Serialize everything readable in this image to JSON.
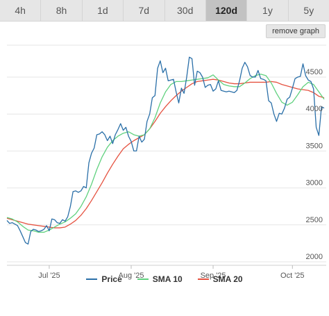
{
  "tabs": [
    {
      "label": "4h"
    },
    {
      "label": "8h"
    },
    {
      "label": "1d"
    },
    {
      "label": "7d"
    },
    {
      "label": "30d"
    },
    {
      "label": "120d",
      "active": true
    },
    {
      "label": "1y"
    },
    {
      "label": "5y"
    }
  ],
  "remove_graph_label": "remove graph",
  "chart_data": {
    "type": "line",
    "x_range": [
      "2025-06-15",
      "2025-10-13"
    ],
    "x_ticks": [
      {
        "date": "2025-07-01",
        "label": "Jul '25"
      },
      {
        "date": "2025-08-01",
        "label": "Aug '25"
      },
      {
        "date": "2025-09-01",
        "label": "Sep '25"
      },
      {
        "date": "2025-10-01",
        "label": "Oct '25"
      }
    ],
    "y_ticks": [
      2000,
      2500,
      3000,
      3500,
      4000,
      4500
    ],
    "ylim": [
      2000,
      4800
    ],
    "grid": true,
    "legend_position": "bottom",
    "series": [
      {
        "name": "Price",
        "color": "#2a6fa8",
        "points": [
          [
            "2025-06-15",
            2560
          ],
          [
            "2025-06-16",
            2520
          ],
          [
            "2025-06-17",
            2530
          ],
          [
            "2025-06-18",
            2510
          ],
          [
            "2025-06-19",
            2490
          ],
          [
            "2025-06-20",
            2420
          ],
          [
            "2025-06-21",
            2340
          ],
          [
            "2025-06-22",
            2260
          ],
          [
            "2025-06-23",
            2240
          ],
          [
            "2025-06-24",
            2410
          ],
          [
            "2025-06-25",
            2440
          ],
          [
            "2025-06-26",
            2430
          ],
          [
            "2025-06-27",
            2410
          ],
          [
            "2025-06-28",
            2420
          ],
          [
            "2025-06-29",
            2440
          ],
          [
            "2025-06-30",
            2490
          ],
          [
            "2025-07-01",
            2420
          ],
          [
            "2025-07-02",
            2580
          ],
          [
            "2025-07-03",
            2570
          ],
          [
            "2025-07-04",
            2530
          ],
          [
            "2025-07-05",
            2520
          ],
          [
            "2025-07-06",
            2570
          ],
          [
            "2025-07-07",
            2550
          ],
          [
            "2025-07-08",
            2610
          ],
          [
            "2025-07-09",
            2750
          ],
          [
            "2025-07-10",
            2950
          ],
          [
            "2025-07-11",
            2960
          ],
          [
            "2025-07-12",
            2940
          ],
          [
            "2025-07-13",
            2960
          ],
          [
            "2025-07-14",
            3020
          ],
          [
            "2025-07-15",
            3000
          ],
          [
            "2025-07-16",
            3340
          ],
          [
            "2025-07-17",
            3470
          ],
          [
            "2025-07-18",
            3540
          ],
          [
            "2025-07-19",
            3720
          ],
          [
            "2025-07-20",
            3730
          ],
          [
            "2025-07-21",
            3760
          ],
          [
            "2025-07-22",
            3720
          ],
          [
            "2025-07-23",
            3640
          ],
          [
            "2025-07-24",
            3700
          ],
          [
            "2025-07-25",
            3600
          ],
          [
            "2025-07-26",
            3720
          ],
          [
            "2025-07-27",
            3790
          ],
          [
            "2025-07-28",
            3870
          ],
          [
            "2025-07-29",
            3780
          ],
          [
            "2025-07-30",
            3820
          ],
          [
            "2025-07-31",
            3700
          ],
          [
            "2025-08-01",
            3630
          ],
          [
            "2025-08-02",
            3500
          ],
          [
            "2025-08-03",
            3500
          ],
          [
            "2025-08-04",
            3700
          ],
          [
            "2025-08-05",
            3620
          ],
          [
            "2025-08-06",
            3660
          ],
          [
            "2025-08-07",
            3900
          ],
          [
            "2025-08-08",
            4000
          ],
          [
            "2025-08-09",
            4220
          ],
          [
            "2025-08-10",
            4250
          ],
          [
            "2025-08-11",
            4620
          ],
          [
            "2025-08-12",
            4720
          ],
          [
            "2025-08-13",
            4560
          ],
          [
            "2025-08-14",
            4620
          ],
          [
            "2025-08-15",
            4450
          ],
          [
            "2025-08-16",
            4460
          ],
          [
            "2025-08-17",
            4470
          ],
          [
            "2025-08-18",
            4300
          ],
          [
            "2025-08-19",
            4150
          ],
          [
            "2025-08-20",
            4350
          ],
          [
            "2025-08-21",
            4280
          ],
          [
            "2025-08-22",
            4500
          ],
          [
            "2025-08-23",
            4770
          ],
          [
            "2025-08-24",
            4750
          ],
          [
            "2025-08-25",
            4390
          ],
          [
            "2025-08-26",
            4580
          ],
          [
            "2025-08-27",
            4560
          ],
          [
            "2025-08-28",
            4500
          ],
          [
            "2025-08-29",
            4360
          ],
          [
            "2025-08-30",
            4390
          ],
          [
            "2025-08-31",
            4400
          ],
          [
            "2025-09-01",
            4310
          ],
          [
            "2025-09-02",
            4340
          ],
          [
            "2025-09-03",
            4450
          ],
          [
            "2025-09-04",
            4320
          ],
          [
            "2025-09-05",
            4310
          ],
          [
            "2025-09-06",
            4300
          ],
          [
            "2025-09-07",
            4310
          ],
          [
            "2025-09-08",
            4300
          ],
          [
            "2025-09-09",
            4290
          ],
          [
            "2025-09-10",
            4320
          ],
          [
            "2025-09-11",
            4450
          ],
          [
            "2025-09-12",
            4620
          ],
          [
            "2025-09-13",
            4700
          ],
          [
            "2025-09-14",
            4640
          ],
          [
            "2025-09-15",
            4520
          ],
          [
            "2025-09-16",
            4500
          ],
          [
            "2025-09-17",
            4500
          ],
          [
            "2025-09-18",
            4590
          ],
          [
            "2025-09-19",
            4480
          ],
          [
            "2025-09-20",
            4470
          ],
          [
            "2025-09-21",
            4450
          ],
          [
            "2025-09-22",
            4180
          ],
          [
            "2025-09-23",
            4150
          ],
          [
            "2025-09-24",
            4000
          ],
          [
            "2025-09-25",
            3900
          ],
          [
            "2025-09-26",
            4010
          ],
          [
            "2025-09-27",
            4000
          ],
          [
            "2025-09-28",
            4080
          ],
          [
            "2025-09-29",
            4200
          ],
          [
            "2025-09-30",
            4230
          ],
          [
            "2025-10-01",
            4350
          ],
          [
            "2025-10-02",
            4480
          ],
          [
            "2025-10-03",
            4500
          ],
          [
            "2025-10-04",
            4510
          ],
          [
            "2025-10-05",
            4680
          ],
          [
            "2025-10-06",
            4520
          ],
          [
            "2025-10-07",
            4460
          ],
          [
            "2025-10-08",
            4440
          ],
          [
            "2025-10-09",
            4340
          ],
          [
            "2025-10-10",
            3820
          ],
          [
            "2025-10-11",
            3710
          ],
          [
            "2025-10-12",
            4100
          ],
          [
            "2025-10-13",
            4080
          ]
        ]
      },
      {
        "name": "SMA 10",
        "color": "#5fd17e",
        "points": [
          [
            "2025-06-15",
            2600
          ],
          [
            "2025-06-17",
            2580
          ],
          [
            "2025-06-19",
            2540
          ],
          [
            "2025-06-21",
            2480
          ],
          [
            "2025-06-23",
            2430
          ],
          [
            "2025-06-25",
            2420
          ],
          [
            "2025-06-27",
            2400
          ],
          [
            "2025-06-29",
            2400
          ],
          [
            "2025-07-01",
            2430
          ],
          [
            "2025-07-03",
            2470
          ],
          [
            "2025-07-05",
            2510
          ],
          [
            "2025-07-07",
            2540
          ],
          [
            "2025-07-09",
            2590
          ],
          [
            "2025-07-11",
            2650
          ],
          [
            "2025-07-13",
            2750
          ],
          [
            "2025-07-15",
            2880
          ],
          [
            "2025-07-17",
            3050
          ],
          [
            "2025-07-19",
            3250
          ],
          [
            "2025-07-21",
            3420
          ],
          [
            "2025-07-23",
            3550
          ],
          [
            "2025-07-25",
            3640
          ],
          [
            "2025-07-27",
            3700
          ],
          [
            "2025-07-29",
            3740
          ],
          [
            "2025-07-31",
            3760
          ],
          [
            "2025-08-02",
            3720
          ],
          [
            "2025-08-04",
            3700
          ],
          [
            "2025-08-06",
            3720
          ],
          [
            "2025-08-08",
            3800
          ],
          [
            "2025-08-10",
            3950
          ],
          [
            "2025-08-12",
            4150
          ],
          [
            "2025-08-14",
            4300
          ],
          [
            "2025-08-16",
            4400
          ],
          [
            "2025-08-18",
            4440
          ],
          [
            "2025-08-20",
            4440
          ],
          [
            "2025-08-22",
            4450
          ],
          [
            "2025-08-24",
            4460
          ],
          [
            "2025-08-26",
            4470
          ],
          [
            "2025-08-28",
            4480
          ],
          [
            "2025-08-30",
            4490
          ],
          [
            "2025-09-01",
            4530
          ],
          [
            "2025-09-03",
            4460
          ],
          [
            "2025-09-05",
            4400
          ],
          [
            "2025-09-07",
            4380
          ],
          [
            "2025-09-09",
            4370
          ],
          [
            "2025-09-11",
            4370
          ],
          [
            "2025-09-13",
            4420
          ],
          [
            "2025-09-15",
            4480
          ],
          [
            "2025-09-17",
            4520
          ],
          [
            "2025-09-19",
            4540
          ],
          [
            "2025-09-21",
            4520
          ],
          [
            "2025-09-23",
            4420
          ],
          [
            "2025-09-25",
            4280
          ],
          [
            "2025-09-27",
            4160
          ],
          [
            "2025-09-29",
            4120
          ],
          [
            "2025-10-01",
            4160
          ],
          [
            "2025-10-03",
            4260
          ],
          [
            "2025-10-05",
            4370
          ],
          [
            "2025-10-07",
            4430
          ],
          [
            "2025-10-09",
            4400
          ],
          [
            "2025-10-11",
            4300
          ],
          [
            "2025-10-13",
            4200
          ]
        ]
      },
      {
        "name": "SMA 20",
        "color": "#e5513f",
        "points": [
          [
            "2025-06-15",
            2590
          ],
          [
            "2025-06-17",
            2570
          ],
          [
            "2025-06-19",
            2550
          ],
          [
            "2025-06-21",
            2530
          ],
          [
            "2025-06-23",
            2510
          ],
          [
            "2025-06-25",
            2500
          ],
          [
            "2025-06-27",
            2490
          ],
          [
            "2025-06-29",
            2480
          ],
          [
            "2025-07-01",
            2470
          ],
          [
            "2025-07-03",
            2460
          ],
          [
            "2025-07-05",
            2460
          ],
          [
            "2025-07-07",
            2470
          ],
          [
            "2025-07-09",
            2510
          ],
          [
            "2025-07-11",
            2560
          ],
          [
            "2025-07-13",
            2630
          ],
          [
            "2025-07-15",
            2720
          ],
          [
            "2025-07-17",
            2830
          ],
          [
            "2025-07-19",
            2950
          ],
          [
            "2025-07-21",
            3070
          ],
          [
            "2025-07-23",
            3200
          ],
          [
            "2025-07-25",
            3320
          ],
          [
            "2025-07-27",
            3430
          ],
          [
            "2025-07-29",
            3530
          ],
          [
            "2025-07-31",
            3590
          ],
          [
            "2025-08-02",
            3640
          ],
          [
            "2025-08-04",
            3680
          ],
          [
            "2025-08-06",
            3720
          ],
          [
            "2025-08-08",
            3800
          ],
          [
            "2025-08-10",
            3900
          ],
          [
            "2025-08-12",
            4010
          ],
          [
            "2025-08-14",
            4100
          ],
          [
            "2025-08-16",
            4180
          ],
          [
            "2025-08-18",
            4250
          ],
          [
            "2025-08-20",
            4310
          ],
          [
            "2025-08-22",
            4360
          ],
          [
            "2025-08-24",
            4410
          ],
          [
            "2025-08-26",
            4440
          ],
          [
            "2025-08-28",
            4450
          ],
          [
            "2025-08-30",
            4460
          ],
          [
            "2025-09-01",
            4470
          ],
          [
            "2025-09-03",
            4460
          ],
          [
            "2025-09-05",
            4440
          ],
          [
            "2025-09-07",
            4420
          ],
          [
            "2025-09-09",
            4410
          ],
          [
            "2025-09-11",
            4410
          ],
          [
            "2025-09-13",
            4420
          ],
          [
            "2025-09-15",
            4430
          ],
          [
            "2025-09-17",
            4430
          ],
          [
            "2025-09-19",
            4430
          ],
          [
            "2025-09-21",
            4430
          ],
          [
            "2025-09-23",
            4440
          ],
          [
            "2025-09-25",
            4430
          ],
          [
            "2025-09-27",
            4400
          ],
          [
            "2025-09-29",
            4380
          ],
          [
            "2025-10-01",
            4360
          ],
          [
            "2025-10-03",
            4340
          ],
          [
            "2025-10-05",
            4330
          ],
          [
            "2025-10-07",
            4320
          ],
          [
            "2025-10-09",
            4290
          ],
          [
            "2025-10-11",
            4240
          ],
          [
            "2025-10-13",
            4220
          ]
        ]
      }
    ]
  }
}
